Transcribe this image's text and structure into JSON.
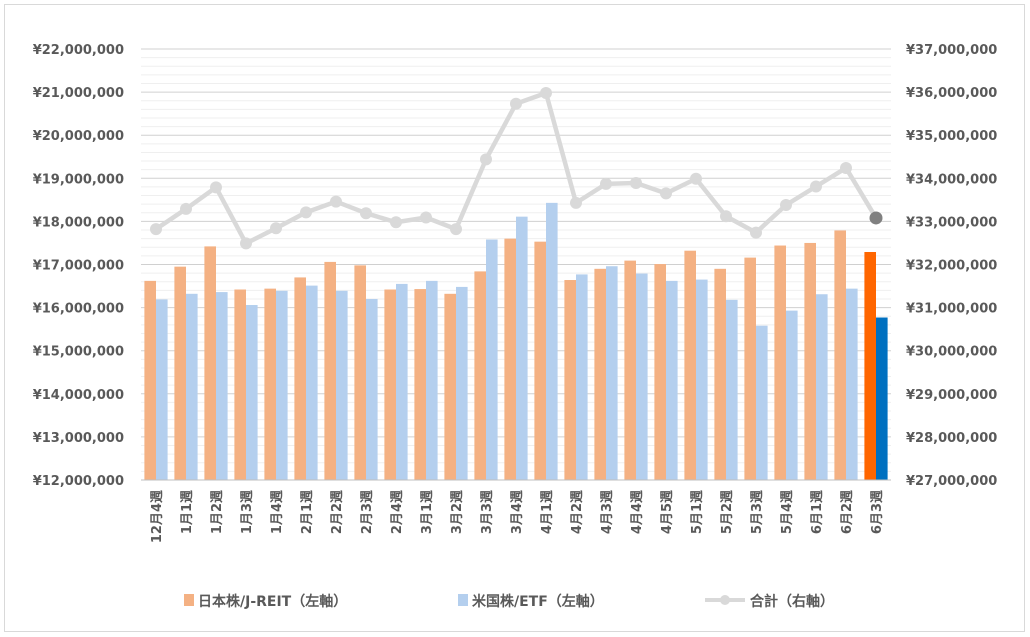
{
  "chart_data": {
    "type": "bar",
    "title": "",
    "categories": [
      "12月4週",
      "1月1週",
      "1月2週",
      "1月3週",
      "1月4週",
      "2月1週",
      "2月2週",
      "2月3週",
      "2月4週",
      "3月1週",
      "3月2週",
      "3月3週",
      "3月4週",
      "4月1週",
      "4月2週",
      "4月3週",
      "4月4週",
      "4月5週",
      "5月1週",
      "5月2週",
      "5月3週",
      "5月4週",
      "6月1週",
      "6月2週",
      "6月3週"
    ],
    "y_left": {
      "min": 12000000,
      "max": 22000000,
      "step": 1000000,
      "tick_labels": [
        "¥12,000,000",
        "¥13,000,000",
        "¥14,000,000",
        "¥15,000,000",
        "¥16,000,000",
        "¥17,000,000",
        "¥18,000,000",
        "¥19,000,000",
        "¥20,000,000",
        "¥21,000,000",
        "¥22,000,000"
      ]
    },
    "y_right": {
      "min": 27000000,
      "max": 37000000,
      "step": 1000000,
      "tick_labels": [
        "¥27,000,000",
        "¥28,000,000",
        "¥29,000,000",
        "¥30,000,000",
        "¥31,000,000",
        "¥32,000,000",
        "¥33,000,000",
        "¥34,000,000",
        "¥35,000,000",
        "¥36,000,000",
        "¥37,000,000"
      ]
    },
    "grid": true,
    "legend_position": "bottom",
    "series": [
      {
        "name": "日本株/J-REIT（左軸）",
        "kind": "bar",
        "axis": "left",
        "color": "#f4b183",
        "highlight_color": "#ff6600",
        "values": [
          16620000,
          16950000,
          17420000,
          16420000,
          16440000,
          16700000,
          17060000,
          16980000,
          16420000,
          16430000,
          16320000,
          16840000,
          17600000,
          17530000,
          16640000,
          16900000,
          17090000,
          17010000,
          17320000,
          16900000,
          17160000,
          17440000,
          17500000,
          17790000,
          17290000
        ]
      },
      {
        "name": "米国株/ETF（左軸）",
        "kind": "bar",
        "axis": "left",
        "color": "#b4cfee",
        "highlight_color": "#0070c0",
        "values": [
          16190000,
          16320000,
          16360000,
          16060000,
          16390000,
          16510000,
          16390000,
          16200000,
          16550000,
          16620000,
          16480000,
          17580000,
          18110000,
          18430000,
          16770000,
          16960000,
          16790000,
          16620000,
          16650000,
          16180000,
          15580000,
          15930000,
          16310000,
          16440000,
          15770000
        ]
      },
      {
        "name": "合計（右軸）",
        "kind": "line",
        "axis": "right",
        "color": "#d9d9d9",
        "highlight_color": "#808080",
        "values": [
          32820000,
          33290000,
          33790000,
          32490000,
          32840000,
          33210000,
          33460000,
          33190000,
          32980000,
          33090000,
          32820000,
          34440000,
          35730000,
          35980000,
          33430000,
          33870000,
          33890000,
          33650000,
          33990000,
          33120000,
          32740000,
          33380000,
          33810000,
          34240000,
          33080000
        ]
      }
    ]
  }
}
